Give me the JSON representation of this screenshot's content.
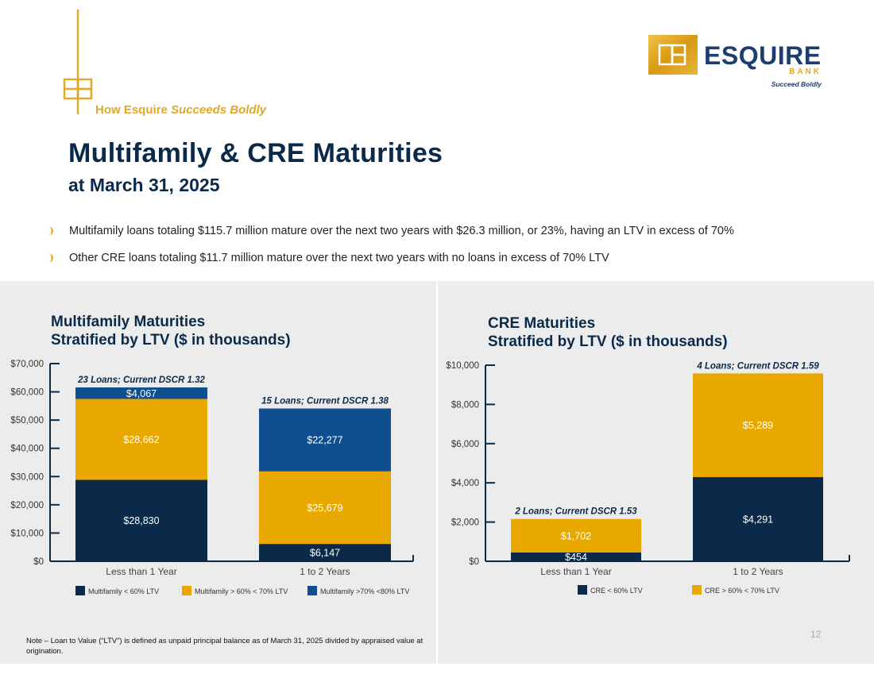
{
  "header": {
    "tagline_prefix": "How Esquire",
    "tagline_emphasis": "Succeeds Boldly",
    "title": "Multifamily & CRE Maturities",
    "subtitle": "at March 31, 2025"
  },
  "brand": {
    "name": "ESQUIRE",
    "sub": "BANK",
    "slogan": "Succeed Boldly"
  },
  "bullets": [
    "Multifamily loans totaling $115.7 million mature over the next two years with $26.3 million, or 23%, having an LTV in excess of 70%",
    "Other CRE loans totaling $11.7 million mature over the next two years with no loans in excess of 70% LTV"
  ],
  "colors": {
    "navy": "#0b2a4a",
    "gold": "#e9a800",
    "blue": "#0f4f8f",
    "logo_gold": "#e2a928"
  },
  "chart_data": [
    {
      "type": "bar",
      "stacked": true,
      "title_line1": "Multifamily Maturities",
      "title_line2": "Stratified by LTV ($ in thousands)",
      "categories": [
        "Less than 1 Year",
        "1 to 2 Years"
      ],
      "series": [
        {
          "name": "Multifamily < 60% LTV",
          "color": "#0b2a4a",
          "values": [
            28830,
            6147
          ],
          "labels": [
            "$28,830",
            "$6,147"
          ]
        },
        {
          "name": "Multifamily > 60% < 70% LTV",
          "color": "#e9a800",
          "values": [
            28662,
            25679
          ],
          "labels": [
            "$28,662",
            "$25,679"
          ]
        },
        {
          "name": "Multifamily >70%  <80% LTV",
          "color": "#0f4f8f",
          "values": [
            4067,
            22277
          ],
          "labels": [
            "$4,067",
            "$22,277"
          ]
        }
      ],
      "annotations": [
        "23 Loans; Current DSCR 1.32",
        "15 Loans; Current DSCR 1.38"
      ],
      "ylim": [
        0,
        70000
      ],
      "yticks": [
        "$0",
        "$10,000",
        "$20,000",
        "$30,000",
        "$40,000",
        "$50,000",
        "$60,000",
        "$70,000"
      ],
      "legend": "bottom"
    },
    {
      "type": "bar",
      "stacked": true,
      "title_line1": "CRE Maturities",
      "title_line2": "Stratified by LTV ($ in thousands)",
      "categories": [
        "Less than 1 Year",
        "1 to 2 Years"
      ],
      "series": [
        {
          "name": "CRE < 60% LTV",
          "color": "#0b2a4a",
          "values": [
            454,
            4291
          ],
          "labels": [
            "$454",
            "$4,291"
          ]
        },
        {
          "name": "CRE > 60% < 70% LTV",
          "color": "#e9a800",
          "values": [
            1702,
            5289
          ],
          "labels": [
            "$1,702",
            "$5,289"
          ]
        }
      ],
      "annotations": [
        "2 Loans; Current DSCR 1.53",
        "4 Loans; Current DSCR 1.59"
      ],
      "ylim": [
        0,
        10000
      ],
      "yticks": [
        "$0",
        "$2,000",
        "$4,000",
        "$6,000",
        "$8,000",
        "$10,000"
      ],
      "legend": "bottom"
    }
  ],
  "footer": {
    "note": "Note – Loan to Value (“LTV”) is defined as unpaid principal balance as of March 31, 2025 divided by appraised value at origination.",
    "page_number": "12"
  }
}
